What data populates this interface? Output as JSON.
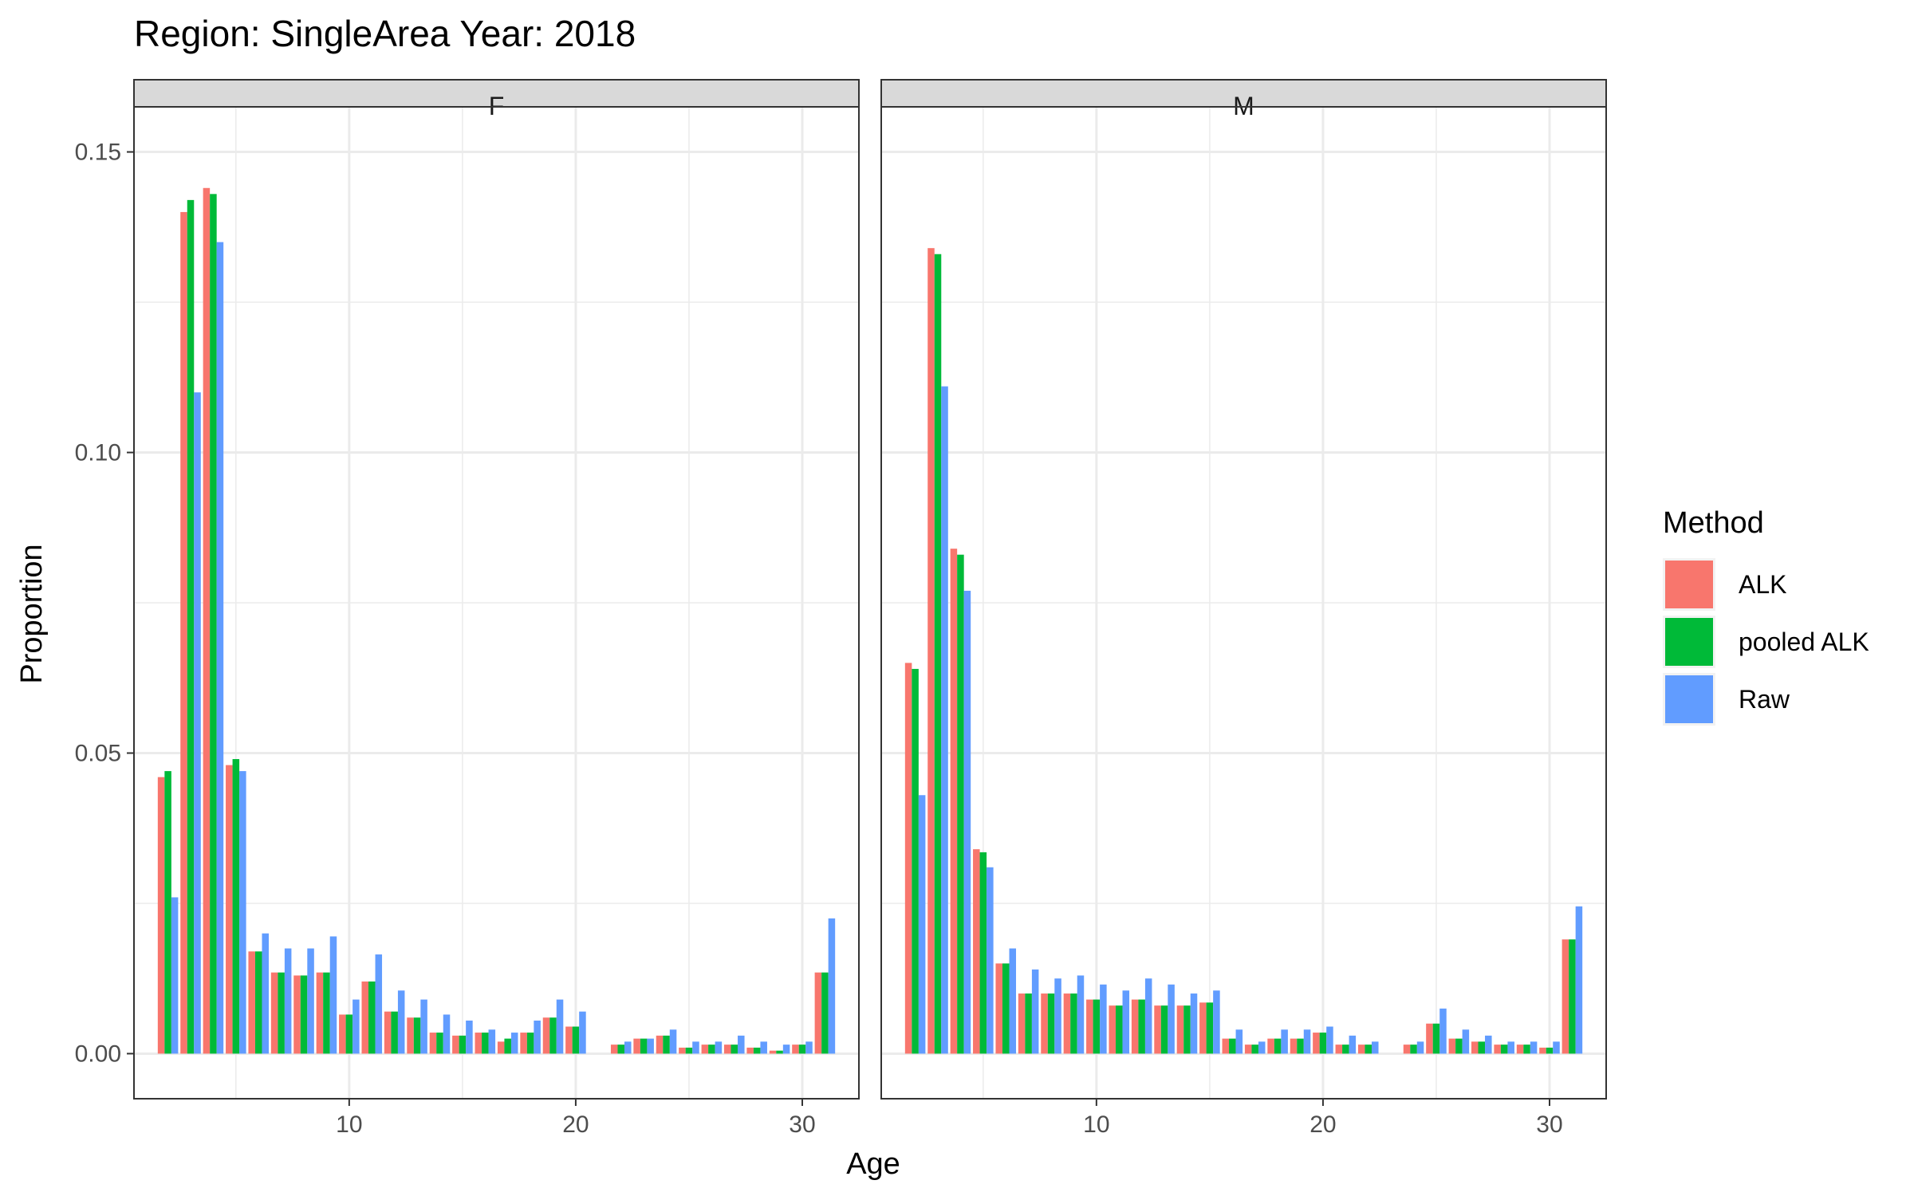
{
  "chart_data": {
    "type": "bar",
    "title": "Region: SingleArea Year: 2018",
    "xlabel": "Age",
    "ylabel": "Proportion",
    "xlim": [
      0.5,
      32.5
    ],
    "ylim": [
      -0.0075,
      0.1575
    ],
    "x_ticks": [
      10,
      20,
      30
    ],
    "x_tick_labels": [
      "10",
      "20",
      "30"
    ],
    "y_ticks": [
      0,
      0.05,
      0.1,
      0.15
    ],
    "y_tick_labels": [
      "0.00",
      "0.05",
      "0.10",
      "0.15"
    ],
    "grid": true,
    "legend": {
      "title": "Method",
      "position": "right",
      "entries": [
        "ALK",
        "pooled ALK",
        "Raw"
      ]
    },
    "colors": {
      "ALK": "#F8766D",
      "pooled ALK": "#00BA38",
      "Raw": "#619CFF",
      "strip_bg": "#D9D9D9",
      "grid": "#EBEBEB",
      "border": "#333333"
    },
    "facets": [
      {
        "label": "F",
        "ages": [
          2,
          3,
          4,
          5,
          6,
          7,
          8,
          9,
          10,
          11,
          12,
          13,
          14,
          15,
          16,
          17,
          18,
          19,
          20,
          22,
          23,
          24,
          25,
          26,
          27,
          28,
          29,
          30,
          31
        ],
        "series": [
          {
            "name": "ALK",
            "values": [
              0.046,
              0.14,
              0.144,
              0.048,
              0.017,
              0.0135,
              0.013,
              0.0135,
              0.0065,
              0.012,
              0.007,
              0.006,
              0.0035,
              0.003,
              0.0035,
              0.002,
              0.0035,
              0.006,
              0.0045,
              0.0015,
              0.0025,
              0.003,
              0.001,
              0.0015,
              0.0015,
              0.001,
              0.0005,
              0.0015,
              0.0135
            ]
          },
          {
            "name": "pooled ALK",
            "values": [
              0.047,
              0.142,
              0.143,
              0.049,
              0.017,
              0.0135,
              0.013,
              0.0135,
              0.0065,
              0.012,
              0.007,
              0.006,
              0.0035,
              0.003,
              0.0035,
              0.0025,
              0.0035,
              0.006,
              0.0045,
              0.0015,
              0.0025,
              0.003,
              0.001,
              0.0015,
              0.0015,
              0.001,
              0.0005,
              0.0015,
              0.0135
            ]
          },
          {
            "name": "Raw",
            "values": [
              0.026,
              0.11,
              0.135,
              0.047,
              0.02,
              0.0175,
              0.0175,
              0.0195,
              0.009,
              0.0165,
              0.0105,
              0.009,
              0.0065,
              0.0055,
              0.004,
              0.0035,
              0.0055,
              0.009,
              0.007,
              0.002,
              0.0025,
              0.004,
              0.002,
              0.002,
              0.003,
              0.002,
              0.0015,
              0.002,
              0.0225
            ]
          }
        ]
      },
      {
        "label": "M",
        "ages": [
          2,
          3,
          4,
          5,
          6,
          7,
          8,
          9,
          10,
          11,
          12,
          13,
          14,
          15,
          16,
          17,
          18,
          19,
          20,
          21,
          22,
          24,
          25,
          26,
          27,
          28,
          29,
          30,
          31
        ],
        "series": [
          {
            "name": "ALK",
            "values": [
              0.065,
              0.134,
              0.084,
              0.034,
              0.015,
              0.01,
              0.01,
              0.01,
              0.009,
              0.008,
              0.009,
              0.008,
              0.008,
              0.0085,
              0.0025,
              0.0015,
              0.0025,
              0.0025,
              0.0035,
              0.0015,
              0.0015,
              0.0015,
              0.005,
              0.0025,
              0.002,
              0.0015,
              0.0015,
              0.001,
              0.019
            ]
          },
          {
            "name": "pooled ALK",
            "values": [
              0.064,
              0.133,
              0.083,
              0.0335,
              0.015,
              0.01,
              0.01,
              0.01,
              0.009,
              0.008,
              0.009,
              0.008,
              0.008,
              0.0085,
              0.0025,
              0.0015,
              0.0025,
              0.0025,
              0.0035,
              0.0015,
              0.0015,
              0.0015,
              0.005,
              0.0025,
              0.002,
              0.0015,
              0.0015,
              0.001,
              0.019
            ]
          },
          {
            "name": "Raw",
            "values": [
              0.043,
              0.111,
              0.077,
              0.031,
              0.0175,
              0.014,
              0.0125,
              0.013,
              0.0115,
              0.0105,
              0.0125,
              0.0115,
              0.01,
              0.0105,
              0.004,
              0.002,
              0.004,
              0.004,
              0.0045,
              0.003,
              0.002,
              0.002,
              0.0075,
              0.004,
              0.003,
              0.002,
              0.002,
              0.002,
              0.0245
            ]
          }
        ]
      }
    ]
  }
}
